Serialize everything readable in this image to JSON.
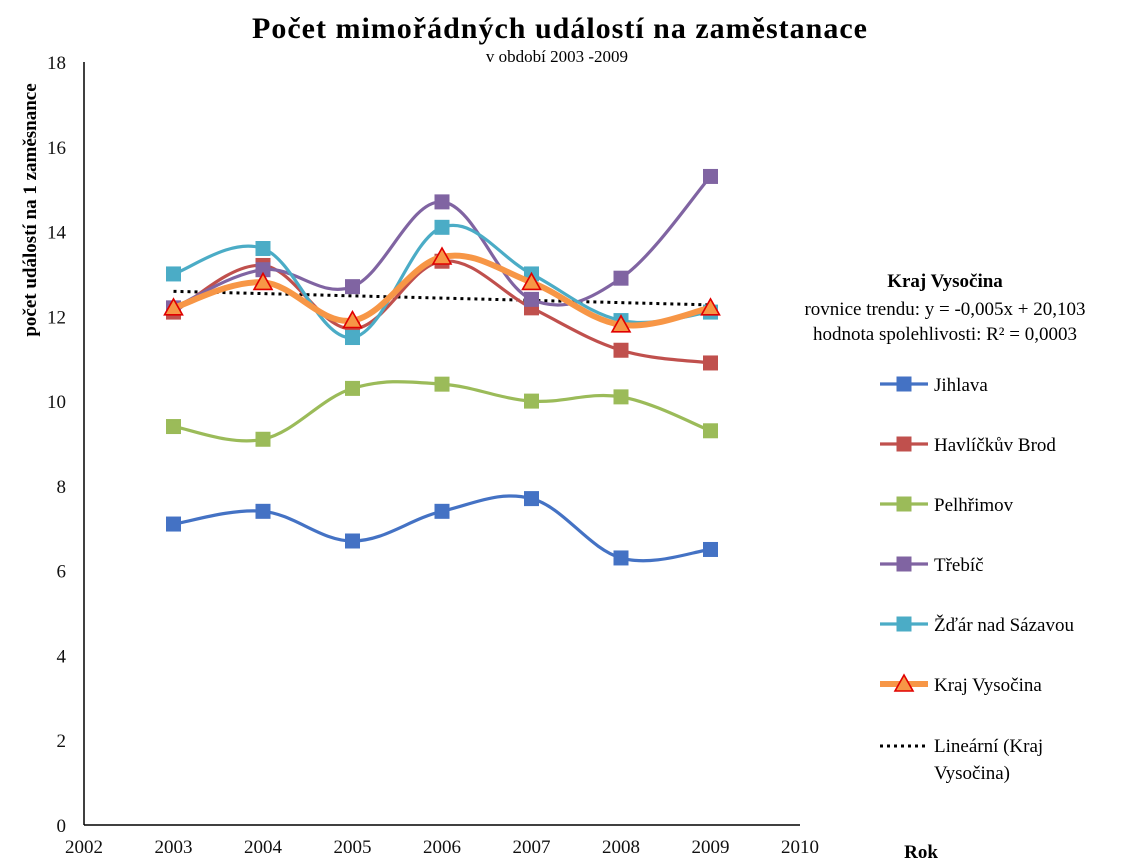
{
  "chart_data": {
    "type": "line",
    "title": "Počet mimořádných událostí na zaměstanace",
    "subtitle": "v období 2003 -2009",
    "xlabel": "Rok",
    "ylabel": "počet událostí na 1 zaměsnance",
    "xlim": [
      2002,
      2010
    ],
    "ylim": [
      0,
      18
    ],
    "x_ticks": [
      "2002",
      "2003",
      "2004",
      "2005",
      "2006",
      "2007",
      "2008",
      "2009",
      "2010"
    ],
    "y_ticks": [
      "0",
      "2",
      "4",
      "6",
      "8",
      "10",
      "12",
      "14",
      "16",
      "18"
    ],
    "x": [
      2003,
      2004,
      2005,
      2006,
      2007,
      2008,
      2009
    ],
    "grid": false,
    "legend_position": "right",
    "series": [
      {
        "name": "Jihlava",
        "color": "#4472C4",
        "marker": "square",
        "values": [
          7.1,
          7.4,
          6.7,
          7.4,
          7.7,
          6.3,
          6.5
        ]
      },
      {
        "name": "Havlíčkův Brod",
        "color": "#C0504D",
        "marker": "square",
        "values": [
          12.1,
          13.2,
          11.7,
          13.3,
          12.2,
          11.2,
          10.9
        ]
      },
      {
        "name": "Pelhřimov",
        "color": "#9BBB59",
        "marker": "square",
        "values": [
          9.4,
          9.1,
          10.3,
          10.4,
          10.0,
          10.1,
          9.3
        ]
      },
      {
        "name": "Třebíč",
        "color": "#8064A2",
        "marker": "square",
        "values": [
          12.2,
          13.1,
          12.7,
          14.7,
          12.4,
          12.9,
          15.3
        ]
      },
      {
        "name": "Žďár nad Sázavou",
        "color": "#4BACC6",
        "marker": "square",
        "values": [
          13.0,
          13.6,
          11.5,
          14.1,
          13.0,
          11.9,
          12.1
        ]
      },
      {
        "name": "Kraj Vysočina",
        "color": "#F79646",
        "marker": "triangle",
        "values": [
          12.2,
          12.8,
          11.9,
          13.4,
          12.8,
          11.8,
          12.2
        ]
      }
    ],
    "trendline": {
      "name": "Lineární (Kraj Vysočina)",
      "label_line1": "Lineární (Kraj",
      "label_line2": "Vysočina)",
      "color": "#000000",
      "x_range": [
        2003,
        2009
      ],
      "y_values": [
        12.59,
        12.27
      ]
    },
    "annotation": {
      "title": "Kraj Vysočina",
      "line1": "rovnice trendu: y = -0,005x  + 20,103",
      "line2": "hodnota spolehlivosti:  R² = 0,0003"
    }
  }
}
